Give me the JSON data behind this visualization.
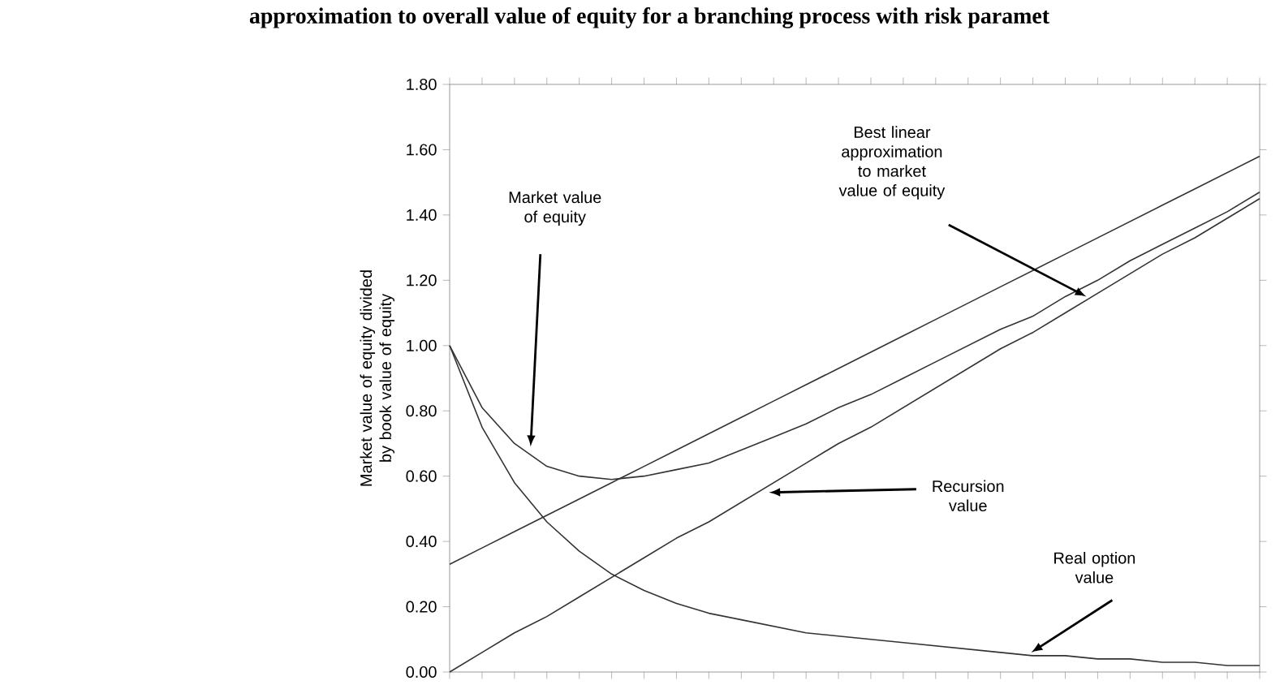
{
  "chart_data": {
    "type": "line",
    "title": "approximation to overall value of equity for a branching process with risk paramet",
    "ylabel": "Market value of equity divided by book value of equity",
    "categories": [
      null,
      null,
      null,
      null,
      null,
      null,
      null,
      null,
      null,
      null,
      null,
      null,
      null,
      null,
      null,
      null,
      null,
      null,
      null,
      null,
      null,
      null,
      null,
      null,
      null,
      null
    ],
    "series": [
      {
        "color": "#333333",
        "values": [
          1.0,
          0.81,
          0.7,
          0.63,
          0.6,
          0.59,
          0.6,
          0.62,
          0.64,
          0.68,
          0.72,
          0.76,
          0.81,
          0.85,
          0.9,
          0.95,
          1.0,
          1.05,
          1.09,
          1.15,
          1.2,
          1.26,
          1.31,
          1.36,
          1.41,
          1.47
        ]
      },
      {
        "color": "#333333",
        "values": [
          0.33,
          0.38,
          0.43,
          0.48,
          0.53,
          0.58,
          0.63,
          0.68,
          0.73,
          0.78,
          0.83,
          0.88,
          0.93,
          0.98,
          1.03,
          1.08,
          1.13,
          1.18,
          1.23,
          1.28,
          1.33,
          1.38,
          1.43,
          1.48,
          1.53,
          1.58
        ]
      },
      {
        "color": "#333333",
        "values": [
          0.0,
          0.06,
          0.12,
          0.17,
          0.23,
          0.29,
          0.35,
          0.41,
          0.46,
          0.52,
          0.58,
          0.64,
          0.7,
          0.75,
          0.81,
          0.87,
          0.93,
          0.99,
          1.04,
          1.1,
          1.16,
          1.22,
          1.28,
          1.33,
          1.39,
          1.45
        ]
      },
      {
        "color": "#333333",
        "values": [
          1.0,
          0.75,
          0.58,
          0.46,
          0.37,
          0.3,
          0.25,
          0.21,
          0.18,
          0.16,
          0.14,
          0.12,
          0.11,
          0.1,
          0.09,
          0.08,
          0.07,
          0.06,
          0.05,
          0.05,
          0.04,
          0.04,
          0.03,
          0.03,
          0.02,
          0.02
        ]
      }
    ],
    "ylim": [
      0,
      1.8
    ],
    "yticks": [
      {
        "value": 0,
        "label": "0.00"
      },
      {
        "value": 0.2,
        "label": "0.20"
      },
      {
        "value": 0.4,
        "label": "0.40"
      },
      {
        "value": 0.6,
        "label": "0.60"
      },
      {
        "value": 0.8,
        "label": "0.80"
      },
      {
        "value": 1.0,
        "label": "1.00"
      },
      {
        "value": 1.2,
        "label": "1.20"
      },
      {
        "value": 1.4,
        "label": "1.40"
      },
      {
        "value": 1.6,
        "label": "1.60"
      },
      {
        "value": 1.8,
        "label": "1.80"
      }
    ],
    "annotations": [
      "Market value of equity",
      "Best linear approximation to market value of equity",
      "Recursion value",
      "Real option value"
    ],
    "tick_labels": "y",
    "marker": "none",
    "line_style": "solid"
  }
}
